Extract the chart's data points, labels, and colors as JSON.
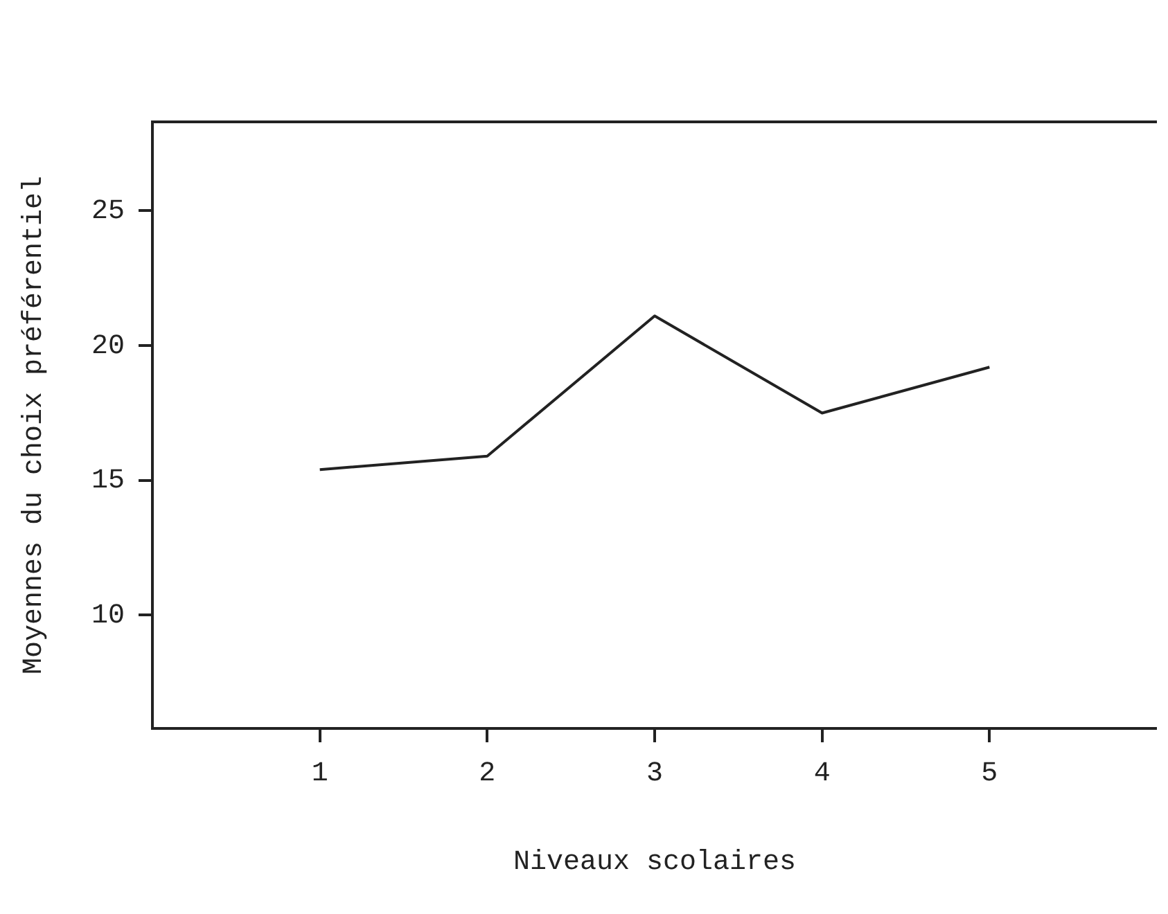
{
  "chart_data": {
    "type": "line",
    "xlabel": "Niveaux scolaires",
    "ylabel": "Moyennes du choix préférentiel",
    "x": [
      1,
      2,
      3,
      4,
      5
    ],
    "values": [
      15.4,
      15.9,
      21.1,
      17.5,
      19.2
    ],
    "color": "#222222",
    "xlim": [
      0,
      6
    ],
    "xticks": [
      1,
      2,
      3,
      4,
      5
    ],
    "ylim": [
      5.8,
      28.3
    ],
    "yticks": [
      10,
      15,
      20,
      25
    ],
    "grid": false,
    "legend": false,
    "marker": "none",
    "line_style": "solid"
  }
}
